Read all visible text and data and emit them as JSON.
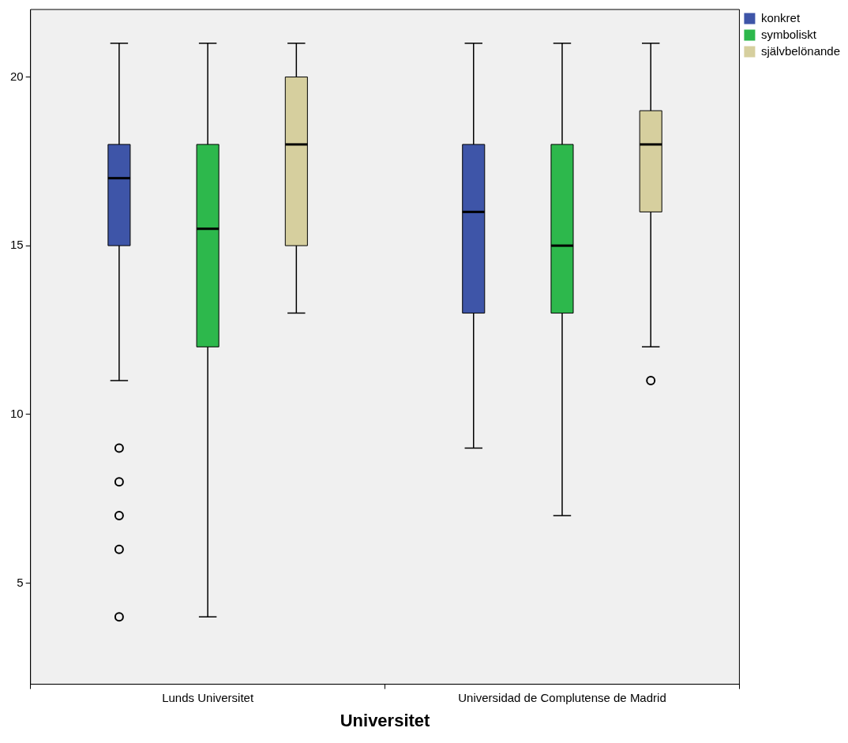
{
  "chart_data": {
    "type": "box",
    "xlabel": "Universitet",
    "categories": [
      "Lunds Universitet",
      "Universidad de Complutense de Madrid"
    ],
    "ylim": [
      2,
      22
    ],
    "yticks": [
      5,
      10,
      15,
      20
    ],
    "grid": false,
    "legend": "top right",
    "series": [
      {
        "name": "konkret",
        "color": "#3e55a8",
        "boxes": [
          {
            "low": 11,
            "q1": 15,
            "median": 17,
            "q3": 18,
            "high": 21,
            "outliers": [
              9,
              8,
              7,
              6,
              4
            ]
          },
          {
            "low": 9,
            "q1": 13,
            "median": 16,
            "q3": 18,
            "high": 21
          }
        ]
      },
      {
        "name": "symboliskt",
        "color": "#2db84c",
        "boxes": [
          {
            "low": 4,
            "q1": 12,
            "median": 15.5,
            "q3": 18,
            "high": 21
          },
          {
            "low": 7,
            "q1": 13,
            "median": 15,
            "q3": 18,
            "high": 21
          }
        ]
      },
      {
        "name": "självbelönande",
        "color": "#d6cf9e",
        "boxes": [
          {
            "low": 13,
            "q1": 15,
            "median": 18,
            "q3": 20,
            "high": 21
          },
          {
            "low": 12,
            "q1": 16,
            "median": 18,
            "q3": 19,
            "high": 21,
            "outliers": [
              11
            ]
          }
        ]
      }
    ]
  }
}
